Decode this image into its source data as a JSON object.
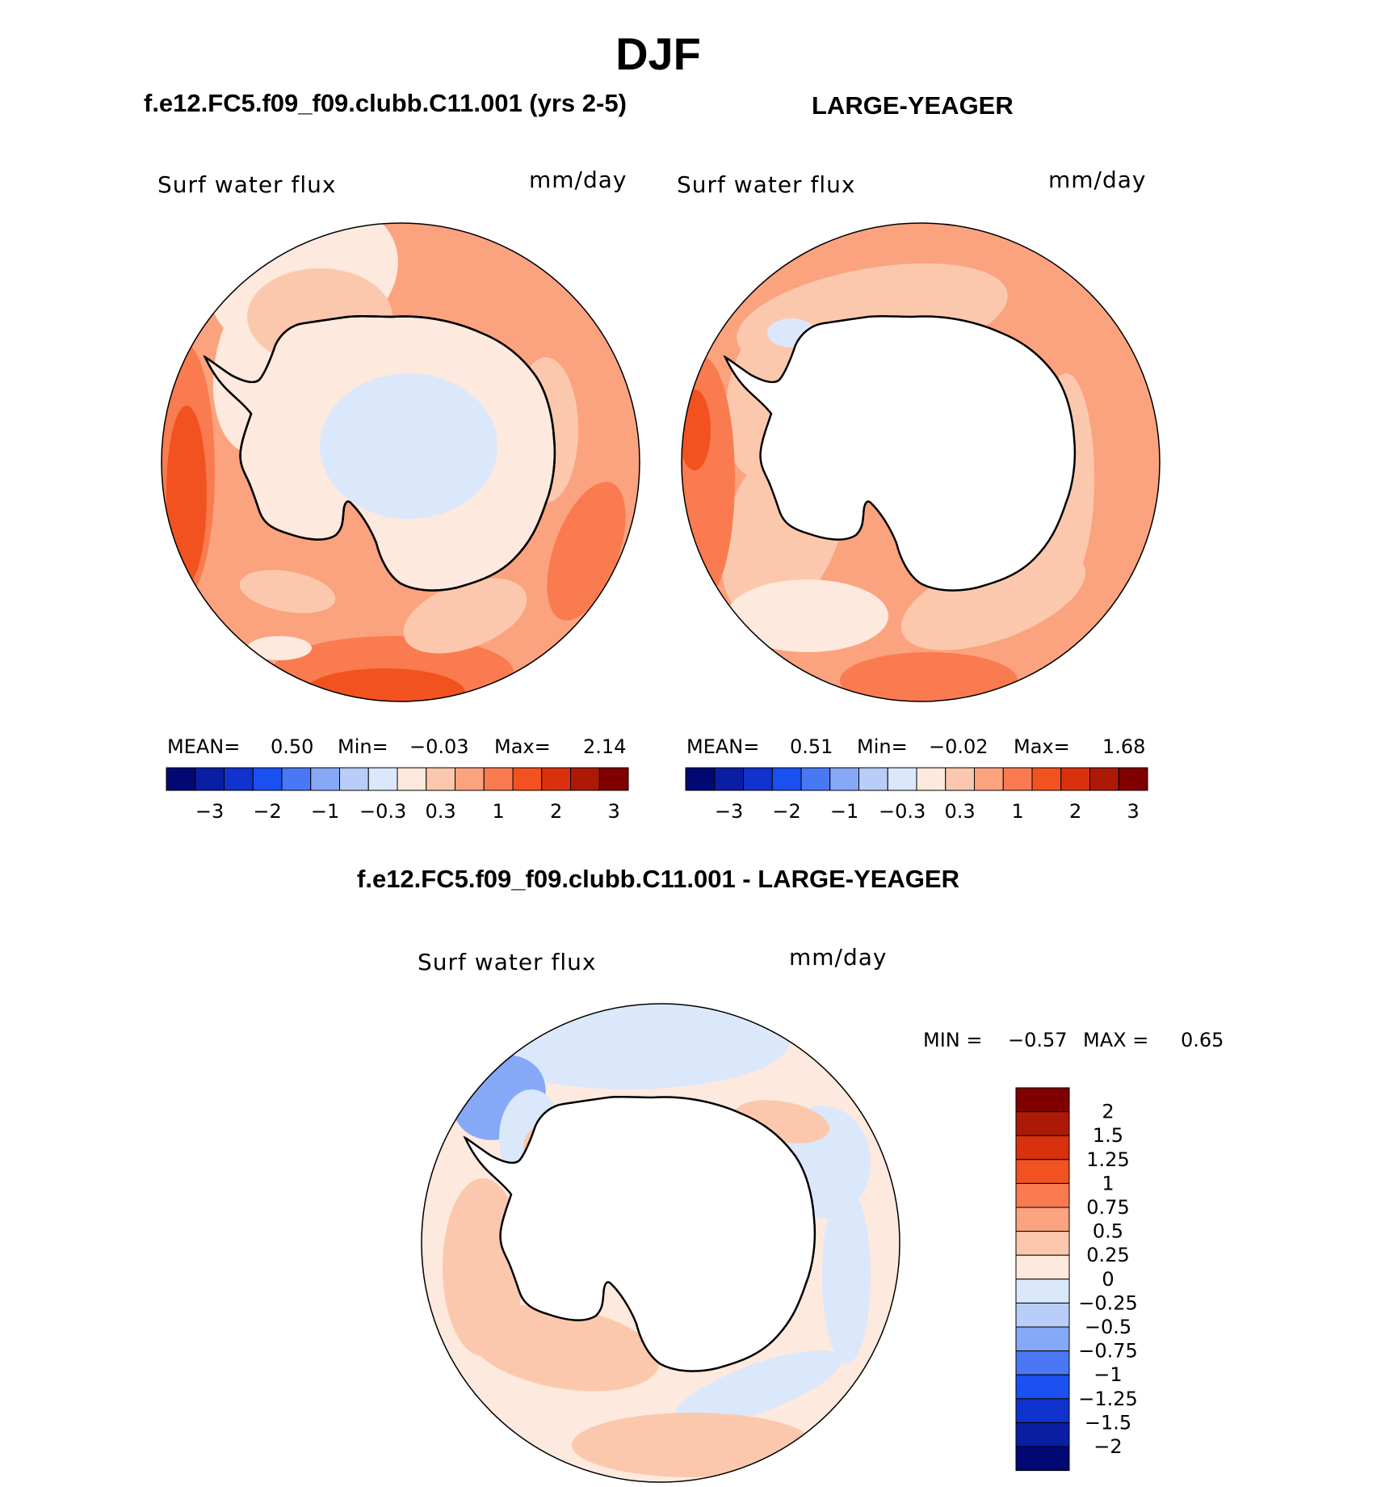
{
  "title": "DJF",
  "panels": {
    "left": {
      "header": "f.e12.FC5.f09_f09.clubb.C11.001 (yrs 2-5)",
      "variable": "Surf water flux",
      "units": "mm/day",
      "stats": {
        "mean_label": "MEAN=",
        "mean": "0.50",
        "min_label": "Min=",
        "min": "−0.03",
        "max_label": "Max=",
        "max": "2.14"
      }
    },
    "right": {
      "header": "LARGE-YEAGER",
      "variable": "Surf water flux",
      "units": "mm/day",
      "stats": {
        "mean_label": "MEAN=",
        "mean": "0.51",
        "min_label": "Min=",
        "min": "−0.02",
        "max_label": "Max=",
        "max": "1.68"
      }
    },
    "diff": {
      "header": "f.e12.FC5.f09_f09.clubb.C11.001 - LARGE-YEAGER",
      "variable": "Surf water flux",
      "units": "mm/day",
      "stats": {
        "min_label": "MIN =",
        "min": "−0.57",
        "max_label": "MAX =",
        "max": "0.65"
      }
    }
  },
  "colorbars": {
    "main": {
      "colors": [
        "#020873",
        "#0a1ea3",
        "#0f33cc",
        "#1a4ff0",
        "#4a78f5",
        "#86a9f7",
        "#b9cdf9",
        "#dbe8fb",
        "#fde9dd",
        "#fcc8ad",
        "#fba27f",
        "#f97b4f",
        "#f2521f",
        "#d9310e",
        "#ac1a07",
        "#800000"
      ],
      "tick_labels": [
        "−3",
        "−2",
        "−1",
        "−0.3",
        "0.3",
        "1",
        "2",
        "3"
      ]
    },
    "diff": {
      "colors": [
        "#020873",
        "#0a1ea3",
        "#0f33cc",
        "#1a4ff0",
        "#4a78f5",
        "#86a9f7",
        "#b9cdf9",
        "#dbe8fb",
        "#fde9dd",
        "#fcc8ad",
        "#fba27f",
        "#f97b4f",
        "#f2521f",
        "#d9310e",
        "#ac1a07",
        "#800000"
      ],
      "tick_labels": [
        "2",
        "1.5",
        "1.25",
        "1",
        "0.75",
        "0.5",
        "0.25",
        "0",
        "−0.25",
        "−0.5",
        "−0.75",
        "−1",
        "−1.25",
        "−1.5",
        "−2"
      ]
    }
  },
  "map_colors": {
    "land_left": "#fde9dd",
    "land_left_inner": "#dbe8fb",
    "land_other": "#ffffff",
    "ocean_base_left": "#fba27f",
    "ocean_base_right": "#fba27f",
    "ocean_base_diff": "#fde9dd",
    "strong": "#f97b4f",
    "stronger": "#f2521f",
    "light": "#fcc8ad",
    "pale": "#fde9dd",
    "neg": "#dbe8fb",
    "neg2": "#86a9f7",
    "coast": "#000000"
  }
}
